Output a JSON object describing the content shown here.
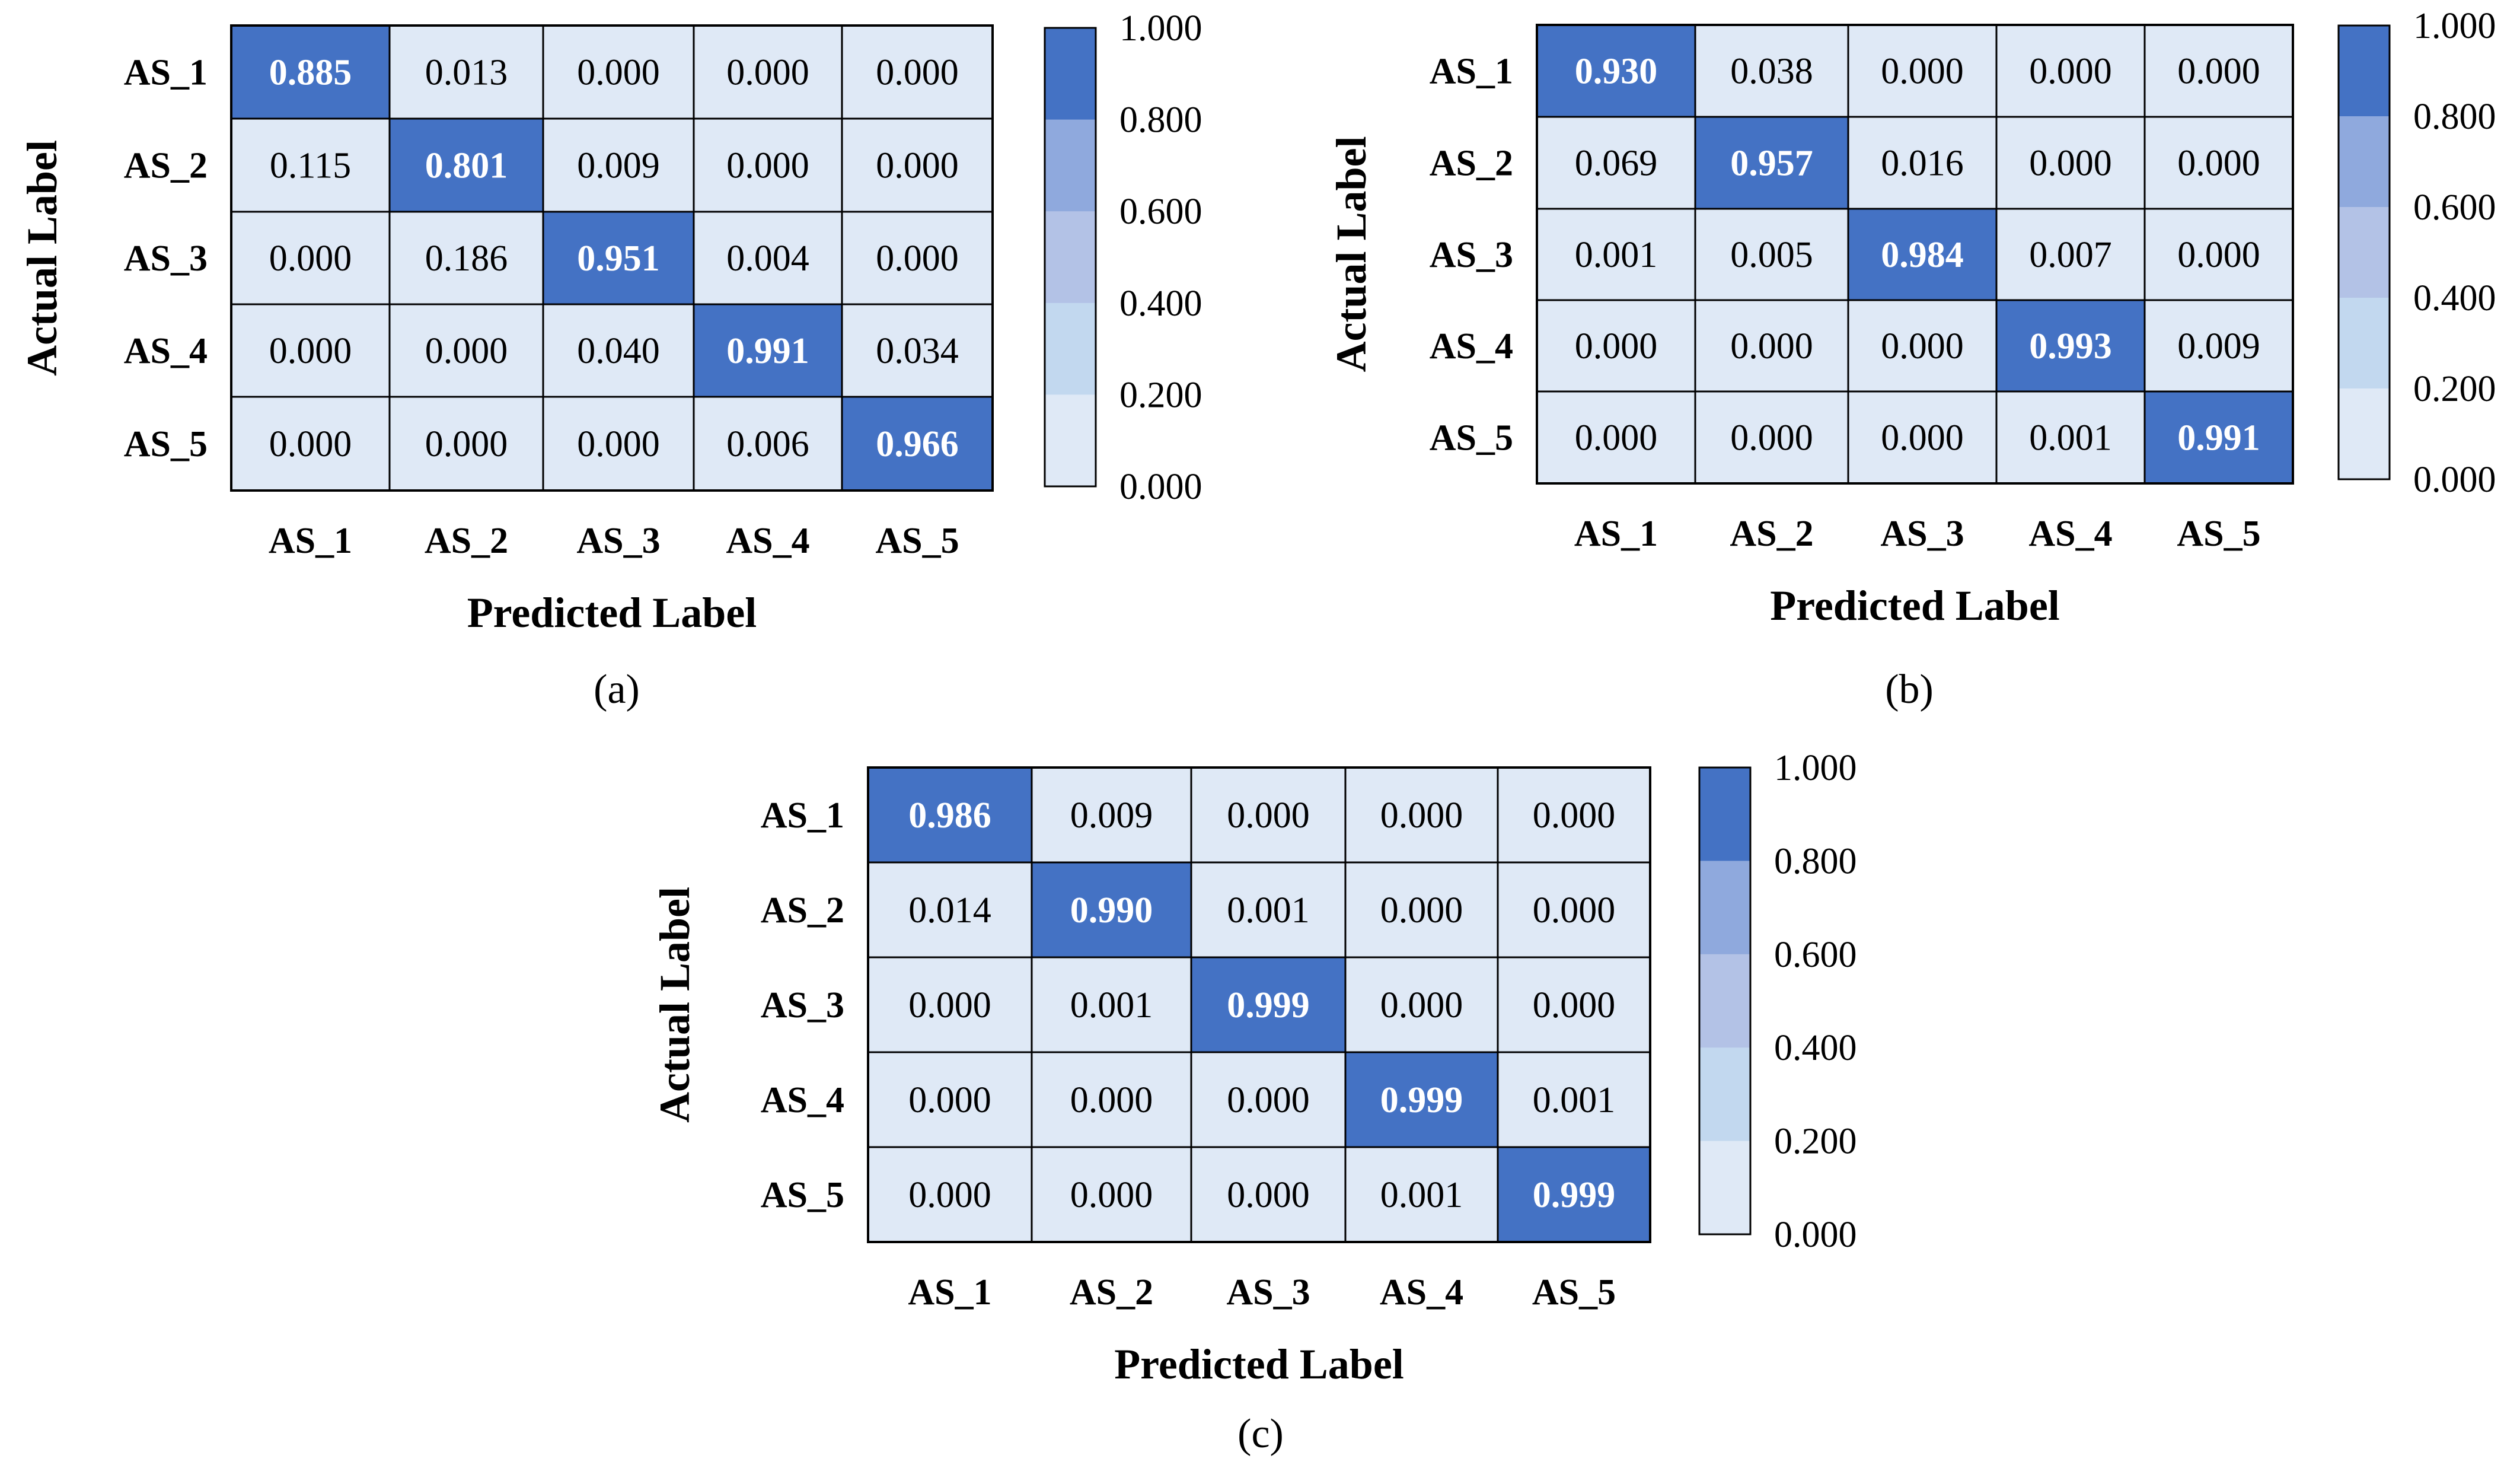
{
  "chart_data": [
    {
      "type": "heatmap",
      "panel_caption": "(a)",
      "xlabel": "Predicted Label",
      "ylabel": "Actual Label",
      "x_categories": [
        "AS_1",
        "AS_2",
        "AS_3",
        "AS_4",
        "AS_5"
      ],
      "y_categories": [
        "AS_1",
        "AS_2",
        "AS_3",
        "AS_4",
        "AS_5"
      ],
      "values": [
        [
          "0.885",
          "0.013",
          "0.000",
          "0.000",
          "0.000"
        ],
        [
          "0.115",
          "0.801",
          "0.009",
          "0.000",
          "0.000"
        ],
        [
          "0.000",
          "0.186",
          "0.951",
          "0.004",
          "0.000"
        ],
        [
          "0.000",
          "0.000",
          "0.040",
          "0.991",
          "0.034"
        ],
        [
          "0.000",
          "0.000",
          "0.000",
          "0.006",
          "0.966"
        ]
      ],
      "colorbar_ticks": [
        "1.000",
        "0.800",
        "0.600",
        "0.400",
        "0.200",
        "0.000"
      ],
      "color_range": [
        0,
        1
      ]
    },
    {
      "type": "heatmap",
      "panel_caption": "(b)",
      "xlabel": "Predicted Label",
      "ylabel": "Actual Label",
      "x_categories": [
        "AS_1",
        "AS_2",
        "AS_3",
        "AS_4",
        "AS_5"
      ],
      "y_categories": [
        "AS_1",
        "AS_2",
        "AS_3",
        "AS_4",
        "AS_5"
      ],
      "values": [
        [
          "0.930",
          "0.038",
          "0.000",
          "0.000",
          "0.000"
        ],
        [
          "0.069",
          "0.957",
          "0.016",
          "0.000",
          "0.000"
        ],
        [
          "0.001",
          "0.005",
          "0.984",
          "0.007",
          "0.000"
        ],
        [
          "0.000",
          "0.000",
          "0.000",
          "0.993",
          "0.009"
        ],
        [
          "0.000",
          "0.000",
          "0.000",
          "0.001",
          "0.991"
        ]
      ],
      "colorbar_ticks": [
        "1.000",
        "0.800",
        "0.600",
        "0.400",
        "0.200",
        "0.000"
      ],
      "color_range": [
        0,
        1
      ]
    },
    {
      "type": "heatmap",
      "panel_caption": "(c)",
      "xlabel": "Predicted Label",
      "ylabel": "Actual Label",
      "x_categories": [
        "AS_1",
        "AS_2",
        "AS_3",
        "AS_4",
        "AS_5"
      ],
      "y_categories": [
        "AS_1",
        "AS_2",
        "AS_3",
        "AS_4",
        "AS_5"
      ],
      "values": [
        [
          "0.986",
          "0.009",
          "0.000",
          "0.000",
          "0.000"
        ],
        [
          "0.014",
          "0.990",
          "0.001",
          "0.000",
          "0.000"
        ],
        [
          "0.000",
          "0.001",
          "0.999",
          "0.000",
          "0.000"
        ],
        [
          "0.000",
          "0.000",
          "0.000",
          "0.999",
          "0.001"
        ],
        [
          "0.000",
          "0.000",
          "0.000",
          "0.001",
          "0.999"
        ]
      ],
      "colorbar_ticks": [
        "1.000",
        "0.800",
        "0.600",
        "0.400",
        "0.200",
        "0.000"
      ],
      "color_range": [
        0,
        1
      ]
    }
  ],
  "colors": {
    "band_0_0_2": "#dfe9f6",
    "band_0_2_0_4": "#c2d8ef",
    "band_0_4_0_6": "#b3c2e6",
    "band_0_6_0_8": "#8fa9dd",
    "band_0_8_1_0": "#4472c4",
    "grid_line": "#000000",
    "high_text": "#ffffff"
  }
}
